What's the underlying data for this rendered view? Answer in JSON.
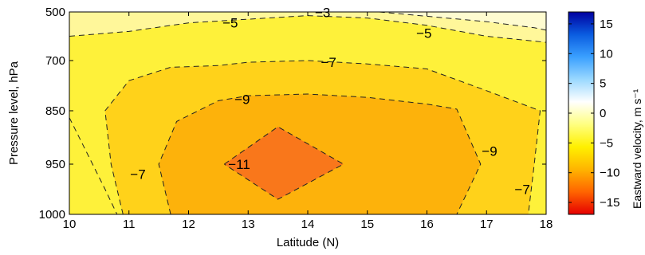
{
  "chart_data": {
    "type": "contour",
    "xlabel": "Latitude (N)",
    "ylabel": "Pressure level, hPa",
    "xlim": [
      10,
      18
    ],
    "x_ticks": [
      "10",
      "11",
      "12",
      "13",
      "14",
      "15",
      "16",
      "17",
      "18"
    ],
    "y_ticks": [
      "500",
      "700",
      "850",
      "950",
      "1000"
    ],
    "y_tick_values": [
      500,
      700,
      850,
      950,
      1000
    ],
    "colorbar": {
      "label": "Eastward velocity, m s⁻¹",
      "range": [
        -17,
        17
      ],
      "ticks": [
        "15",
        "10",
        "5",
        "0",
        "−5",
        "−10",
        "−15"
      ],
      "tick_values": [
        15,
        10,
        5,
        0,
        -5,
        -10,
        -15
      ],
      "colormap": [
        "#e60000",
        "#ff6400",
        "#ffb400",
        "#fff000",
        "#ffff80",
        "#ffffff",
        "#9ad8ff",
        "#3aa0ff",
        "#0a5ce0",
        "#0000a0"
      ]
    },
    "contour_levels": [
      -11,
      -9,
      -7,
      -5,
      -3
    ],
    "fill_colors": {
      "-3": "#fefbd0",
      "-5": "#fff79a",
      "-7": "#fef13a",
      "-9": "#ffd21a",
      "-11": "#fdb20b",
      "-13": "#f9771b"
    },
    "contours": [
      {
        "level": -3,
        "points": [
          [
            10.0,
            863
          ],
          [
            10.6,
            975
          ],
          [
            10.8,
            1000
          ]
        ]
      },
      {
        "level": -3,
        "points": [
          [
            15.2,
            500
          ],
          [
            17.0,
            540
          ],
          [
            17.8,
            565
          ],
          [
            18.0,
            575
          ]
        ]
      },
      {
        "level": -5,
        "points": [
          [
            10.0,
            600
          ],
          [
            11.0,
            580
          ],
          [
            12.0,
            545
          ],
          [
            13.0,
            530
          ],
          [
            14.0,
            515
          ],
          [
            15.0,
            525
          ],
          [
            16.0,
            555
          ],
          [
            17.0,
            600
          ],
          [
            18.0,
            625
          ]
        ]
      },
      {
        "level": -7,
        "points": [
          [
            10.9,
            1000
          ],
          [
            10.7,
            950
          ],
          [
            10.6,
            850
          ],
          [
            11.0,
            760
          ],
          [
            11.7,
            720
          ],
          [
            12.5,
            715
          ],
          [
            13.0,
            705
          ],
          [
            14.0,
            700
          ],
          [
            15.0,
            710
          ],
          [
            16.0,
            725
          ],
          [
            17.0,
            790
          ],
          [
            17.9,
            850
          ],
          [
            17.8,
            950
          ],
          [
            17.7,
            1000
          ]
        ]
      },
      {
        "level": -9,
        "points": [
          [
            11.7,
            1000
          ],
          [
            11.5,
            950
          ],
          [
            11.8,
            870
          ],
          [
            12.5,
            820
          ],
          [
            13.0,
            805
          ],
          [
            14.0,
            800
          ],
          [
            15.0,
            810
          ],
          [
            16.0,
            830
          ],
          [
            16.5,
            845
          ],
          [
            16.9,
            950
          ],
          [
            16.5,
            1000
          ]
        ]
      },
      {
        "level": -11,
        "points": [
          [
            12.6,
            950
          ],
          [
            13.5,
            880
          ],
          [
            14.6,
            950
          ],
          [
            13.5,
            985
          ],
          [
            12.6,
            950
          ]
        ]
      }
    ],
    "contour_labels": [
      {
        "text": "−3",
        "x": 14.25,
        "y": 502
      },
      {
        "text": "−5",
        "x": 12.7,
        "y": 544
      },
      {
        "text": "−5",
        "x": 15.95,
        "y": 587
      },
      {
        "text": "−7",
        "x": 14.35,
        "y": 705
      },
      {
        "text": "−7",
        "x": 11.15,
        "y": 960
      },
      {
        "text": "−7",
        "x": 17.6,
        "y": 975
      },
      {
        "text": "−9",
        "x": 12.9,
        "y": 815
      },
      {
        "text": "−9",
        "x": 17.05,
        "y": 925
      },
      {
        "text": "−11",
        "x": 12.85,
        "y": 950
      }
    ]
  }
}
